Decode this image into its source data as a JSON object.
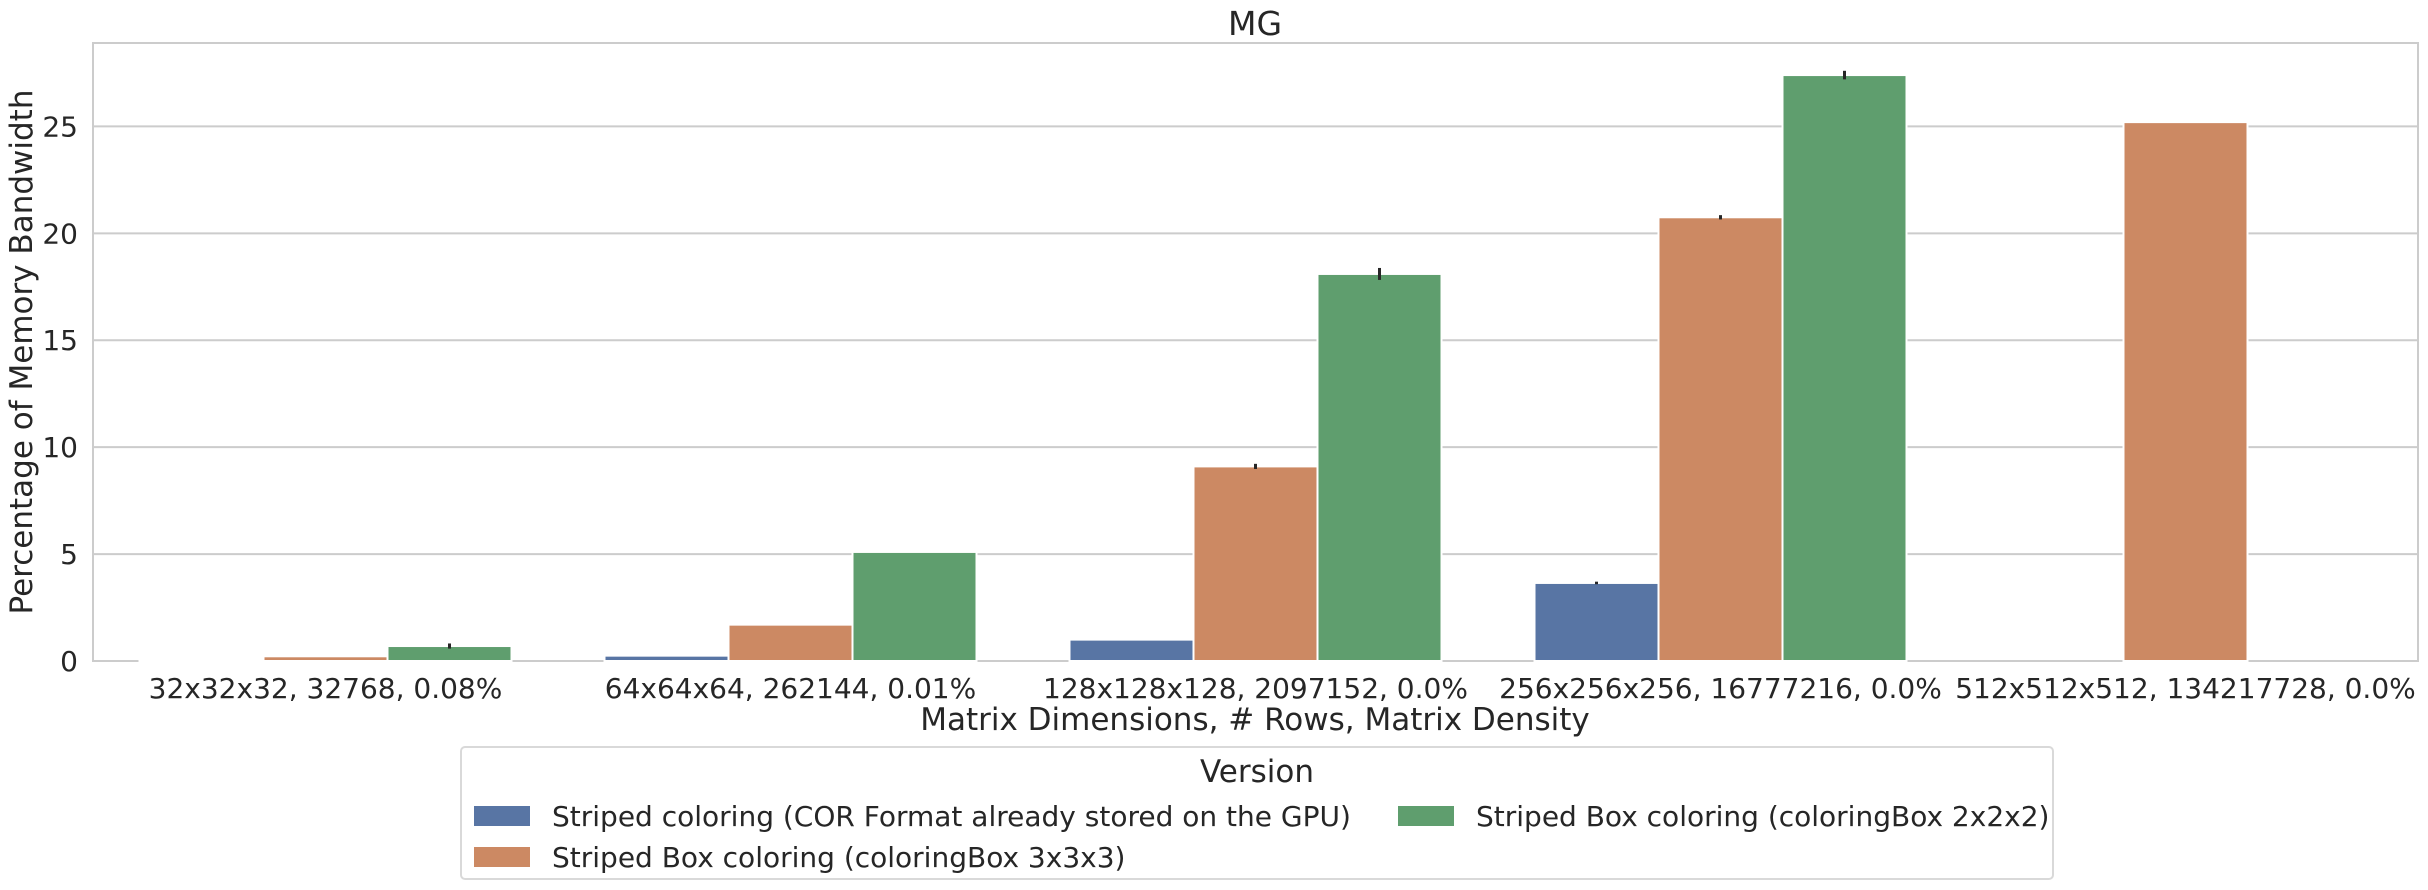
{
  "chart_data": {
    "type": "bar",
    "title": "MG",
    "xlabel": "Matrix Dimensions, # Rows, Matrix Density",
    "ylabel": "Percentage of Memory Bandwidth",
    "ylim": [
      0,
      28.9
    ],
    "yticks": [
      0,
      5,
      10,
      15,
      20,
      25
    ],
    "grid": "horizontal",
    "categories": [
      "32x32x32, 32768, 0.08%",
      "64x64x64, 262144, 0.01%",
      "128x128x128, 2097152, 0.0%",
      "256x256x256, 16777216, 0.0%",
      "512x512x512, 134217728, 0.0%"
    ],
    "series": [
      {
        "name": "Striped coloring (COR Format already stored on the GPU)",
        "color": "#5875a4",
        "values": [
          0.04,
          0.25,
          1.0,
          3.65,
          null
        ],
        "errors": [
          0,
          0,
          0,
          0.06,
          0
        ]
      },
      {
        "name": "Striped Box coloring (coloringBox 3x3x3)",
        "color": "#cc8963",
        "values": [
          0.22,
          1.7,
          9.1,
          20.75,
          25.2
        ],
        "errors": [
          0,
          0,
          0.12,
          0.1,
          0
        ]
      },
      {
        "name": "Striped Box coloring (coloringBox 2x2x2)",
        "color": "#5f9e6e",
        "values": [
          0.7,
          5.1,
          18.1,
          27.4,
          null
        ],
        "errors": [
          0.12,
          0,
          0.28,
          0.2,
          0
        ]
      }
    ],
    "legend": {
      "title": "Version",
      "placement": "bottom-center",
      "columns": 2
    }
  }
}
